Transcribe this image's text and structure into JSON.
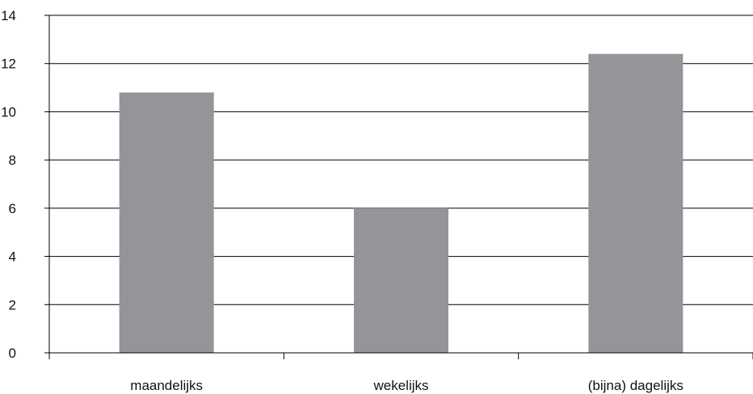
{
  "chart_data": {
    "type": "bar",
    "title": "",
    "xlabel": "",
    "ylabel": "",
    "categories": [
      "maandelijks",
      "wekelijks",
      "(bijna) dagelijks"
    ],
    "values": [
      10.8,
      6.0,
      12.4
    ],
    "ylim": [
      0,
      14
    ],
    "yticks": [
      "0",
      "2",
      "4",
      "6",
      "8",
      "10",
      "12",
      "14"
    ],
    "grid": true,
    "legend": "none",
    "colors": {
      "bar": "#939598",
      "axis": "#000000",
      "grid": "#000000",
      "text": "#111111"
    }
  }
}
